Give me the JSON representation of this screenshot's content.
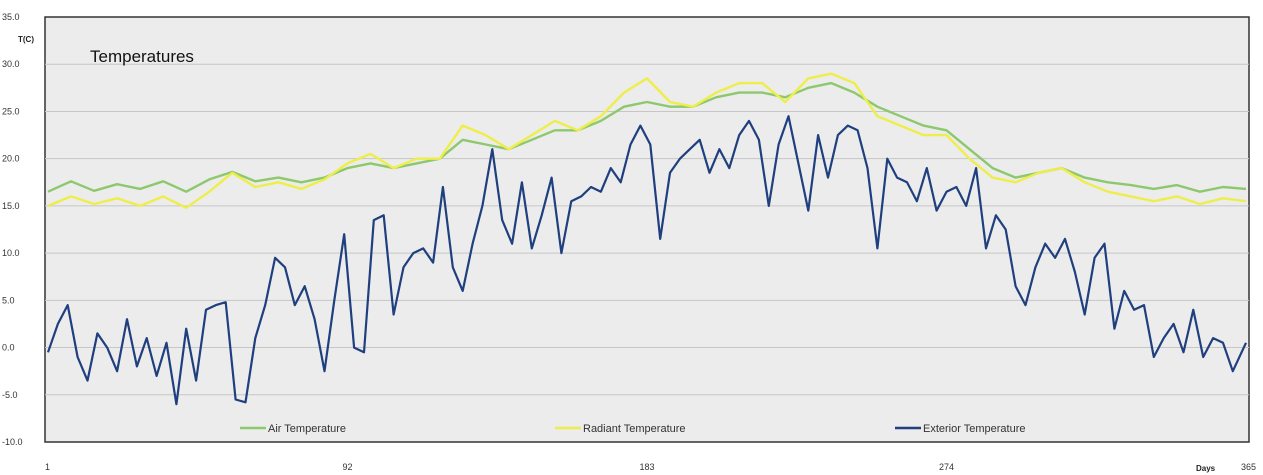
{
  "chart_data": {
    "type": "line",
    "title": "Temperatures",
    "ylabel": "T(C)",
    "xlabel": "Days",
    "ylim": [
      -10,
      35
    ],
    "xlim": [
      1,
      365
    ],
    "y_ticks": [
      "-10.0",
      "-5.0",
      "0.0",
      "5.0",
      "10.0",
      "15.0",
      "20.0",
      "25.0",
      "30.0",
      "35.0"
    ],
    "x_ticks": [
      {
        "value": 1,
        "label": "1"
      },
      {
        "value": 92,
        "label": "92"
      },
      {
        "value": 183,
        "label": "183"
      },
      {
        "value": 274,
        "label": "274"
      },
      {
        "value": 365,
        "label": "365"
      }
    ],
    "grid": true,
    "legend_position": "bottom",
    "series": [
      {
        "name": "Air Temperature",
        "color": "#8dc86d",
        "x": [
          1,
          8,
          15,
          22,
          29,
          36,
          43,
          50,
          57,
          64,
          71,
          78,
          85,
          92,
          99,
          106,
          113,
          120,
          127,
          134,
          141,
          148,
          155,
          162,
          169,
          176,
          183,
          190,
          197,
          204,
          211,
          218,
          225,
          232,
          239,
          246,
          253,
          260,
          267,
          274,
          281,
          288,
          295,
          302,
          309,
          316,
          323,
          330,
          337,
          344,
          351,
          358,
          365
        ],
        "y": [
          16.5,
          17.6,
          16.6,
          17.3,
          16.8,
          17.6,
          16.5,
          17.8,
          18.6,
          17.6,
          18.0,
          17.5,
          18.0,
          19.0,
          19.5,
          19.0,
          19.5,
          20.0,
          22.0,
          21.5,
          21.0,
          22.0,
          23.0,
          23.0,
          24.0,
          25.5,
          26.0,
          25.5,
          25.5,
          26.5,
          27.0,
          27.0,
          26.5,
          27.5,
          28.0,
          27.0,
          25.5,
          24.5,
          23.5,
          23.0,
          21.0,
          19.0,
          18.0,
          18.5,
          19.0,
          18.0,
          17.5,
          17.2,
          16.8,
          17.2,
          16.5,
          17.0,
          16.8
        ]
      },
      {
        "name": "Radiant Temperature",
        "color": "#eeee4a",
        "x": [
          1,
          8,
          15,
          22,
          29,
          36,
          43,
          50,
          57,
          64,
          71,
          78,
          85,
          92,
          99,
          106,
          113,
          120,
          127,
          134,
          141,
          148,
          155,
          162,
          169,
          176,
          183,
          190,
          197,
          204,
          211,
          218,
          225,
          232,
          239,
          246,
          253,
          260,
          267,
          274,
          281,
          288,
          295,
          302,
          309,
          316,
          323,
          330,
          337,
          344,
          351,
          358,
          365
        ],
        "y": [
          15.0,
          16.0,
          15.2,
          15.8,
          15.0,
          16.0,
          14.8,
          16.5,
          18.5,
          17.0,
          17.5,
          16.8,
          17.8,
          19.5,
          20.5,
          19.0,
          20.0,
          20.0,
          23.5,
          22.5,
          21.0,
          22.5,
          24.0,
          23.0,
          24.5,
          27.0,
          28.5,
          26.0,
          25.5,
          27.0,
          28.0,
          28.0,
          26.0,
          28.5,
          29.0,
          28.0,
          24.5,
          23.5,
          22.5,
          22.5,
          20.0,
          18.0,
          17.5,
          18.5,
          19.0,
          17.5,
          16.5,
          16.0,
          15.5,
          16.0,
          15.2,
          15.8,
          15.5
        ]
      },
      {
        "name": "Exterior Temperature",
        "color": "#1f3f7e",
        "x": [
          1,
          4,
          7,
          10,
          13,
          16,
          19,
          22,
          25,
          28,
          31,
          34,
          37,
          40,
          43,
          46,
          49,
          52,
          55,
          58,
          61,
          64,
          67,
          70,
          73,
          76,
          79,
          82,
          85,
          88,
          91,
          94,
          97,
          100,
          103,
          106,
          109,
          112,
          115,
          118,
          121,
          124,
          127,
          130,
          133,
          136,
          139,
          142,
          145,
          148,
          151,
          154,
          157,
          160,
          163,
          166,
          169,
          172,
          175,
          178,
          181,
          184,
          187,
          190,
          193,
          196,
          199,
          202,
          205,
          208,
          211,
          214,
          217,
          220,
          223,
          226,
          229,
          232,
          235,
          238,
          241,
          244,
          247,
          250,
          253,
          256,
          259,
          262,
          265,
          268,
          271,
          274,
          277,
          280,
          283,
          286,
          289,
          292,
          295,
          298,
          301,
          304,
          307,
          310,
          313,
          316,
          319,
          322,
          325,
          328,
          331,
          334,
          337,
          340,
          343,
          346,
          349,
          352,
          355,
          358,
          361,
          365
        ],
        "y": [
          -0.5,
          2.5,
          4.5,
          -1.0,
          -3.5,
          1.5,
          0.0,
          -2.5,
          3.0,
          -2.0,
          1.0,
          -3.0,
          0.5,
          -6.0,
          2.0,
          -3.5,
          4.0,
          4.5,
          4.8,
          -5.5,
          -5.8,
          1.0,
          4.5,
          9.5,
          8.5,
          4.5,
          6.5,
          3.0,
          -2.5,
          5.0,
          12.0,
          0.0,
          -0.5,
          13.5,
          14.0,
          3.5,
          8.5,
          10.0,
          10.5,
          9.0,
          17.0,
          8.5,
          6.0,
          11.0,
          15.0,
          21.0,
          13.5,
          11.0,
          17.5,
          10.5,
          14.0,
          18.0,
          10.0,
          15.5,
          16.0,
          17.0,
          16.5,
          19.0,
          17.5,
          21.5,
          23.5,
          21.5,
          11.5,
          18.5,
          20.0,
          21.0,
          22.0,
          18.5,
          21.0,
          19.0,
          22.5,
          24.0,
          22.0,
          15.0,
          21.5,
          24.5,
          19.5,
          14.5,
          22.5,
          18.0,
          22.5,
          23.5,
          23.0,
          19.0,
          10.5,
          20.0,
          18.0,
          17.5,
          15.5,
          19.0,
          14.5,
          16.5,
          17.0,
          15.0,
          19.0,
          10.5,
          14.0,
          12.5,
          6.5,
          4.5,
          8.5,
          11.0,
          9.5,
          11.5,
          8.0,
          3.5,
          9.5,
          11.0,
          2.0,
          6.0,
          4.0,
          4.5,
          -1.0,
          1.0,
          2.5,
          -0.5,
          4.0,
          -1.0,
          1.0,
          0.5,
          -2.5,
          0.5
        ]
      }
    ]
  }
}
